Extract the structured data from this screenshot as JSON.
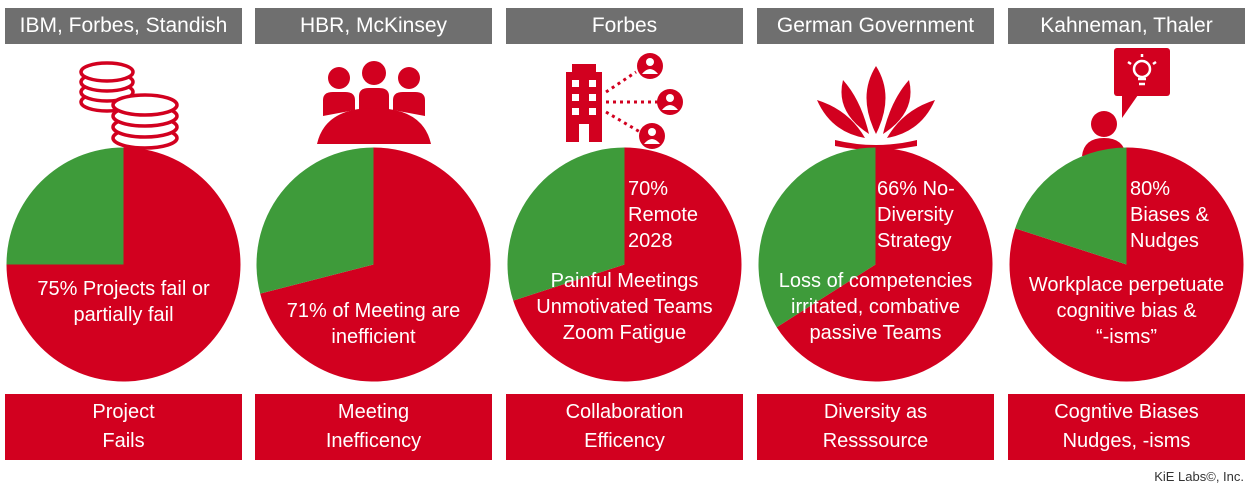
{
  "colors": {
    "red": "#d2001f",
    "green": "#3e9b3a",
    "header": "#6f6f6f",
    "white": "#ffffff"
  },
  "chart_data": [
    {
      "type": "pie",
      "source": "IBM, Forbes, Standish",
      "icon": "coins-stack-icon",
      "slices": [
        {
          "name": "",
          "value": 75,
          "color": "#d2001f"
        },
        {
          "name": "",
          "value": 25,
          "color": "#3e9b3a"
        }
      ],
      "annotations": [
        "75% Projects fail or",
        "partially fail"
      ],
      "category": [
        "Project",
        "Fails"
      ]
    },
    {
      "type": "pie",
      "source": "HBR, McKinsey",
      "icon": "meeting-group-icon",
      "slices": [
        {
          "name": "",
          "value": 71,
          "color": "#d2001f"
        },
        {
          "name": "",
          "value": 29,
          "color": "#3e9b3a"
        }
      ],
      "annotations": [
        "71% of Meeting are",
        "inefficient"
      ],
      "category": [
        "Meeting",
        "Inefficency"
      ]
    },
    {
      "type": "pie",
      "source": "Forbes",
      "icon": "remote-network-icon",
      "slices": [
        {
          "name": "",
          "value": 70,
          "color": "#d2001f"
        },
        {
          "name": "",
          "value": 30,
          "color": "#3e9b3a"
        }
      ],
      "annotations_top": [
        "70%",
        "Remote",
        "2028"
      ],
      "annotations": [
        "Painful Meetings",
        "Unmotivated Teams",
        "Zoom Fatigue"
      ],
      "category": [
        "Collaboration",
        "Efficency"
      ]
    },
    {
      "type": "pie",
      "source": "German Government",
      "icon": "lotus-icon",
      "slices": [
        {
          "name": "",
          "value": 66,
          "color": "#d2001f"
        },
        {
          "name": "",
          "value": 34,
          "color": "#3e9b3a"
        }
      ],
      "annotations_top": [
        "66% No-",
        "Diversity",
        "Strategy"
      ],
      "annotations": [
        "Loss of competencies",
        "irritated, combative",
        "passive Teams"
      ],
      "category": [
        "Diversity as",
        "Resssource"
      ]
    },
    {
      "type": "pie",
      "source": "Kahneman, Thaler",
      "icon": "person-idea-icon",
      "slices": [
        {
          "name": "",
          "value": 80,
          "color": "#d2001f"
        },
        {
          "name": "",
          "value": 20,
          "color": "#3e9b3a"
        }
      ],
      "annotations_top": [
        "80%",
        "Biases &",
        "Nudges"
      ],
      "annotations": [
        "Workplace perpetuate",
        "cognitive bias &",
        "“-isms”"
      ],
      "category": [
        "Cogntive Biases",
        "Nudges, -isms"
      ]
    }
  ],
  "credit": "KiE Labs©, Inc."
}
